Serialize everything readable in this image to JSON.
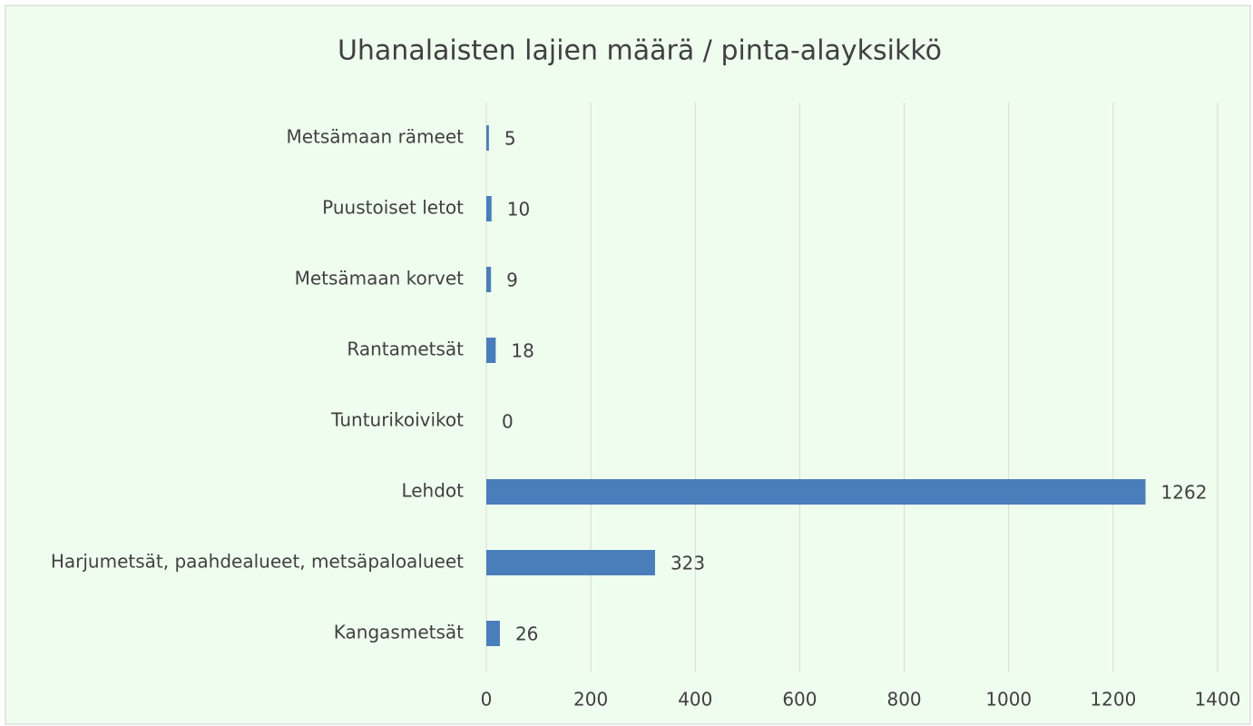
{
  "chart_data": {
    "type": "bar",
    "orientation": "horizontal",
    "title": "Uhanalaisten lajien määrä / pinta-alayksikkö",
    "categories": [
      "Metsämaan rämeet",
      "Puustoiset letot",
      "Metsämaan korvet",
      "Rantametsät",
      "Tunturikoivikot",
      "Lehdot",
      "Harjumetsät, paahdealueet, metsäpaloalueet",
      "Kangasmetsät"
    ],
    "values": [
      5,
      10,
      9,
      18,
      0,
      1262,
      323,
      26
    ],
    "color": "#4a7ebb",
    "xlim": [
      0,
      1400
    ],
    "xticks": [
      0,
      200,
      400,
      600,
      800,
      1000,
      1200,
      1400
    ],
    "grid": true
  }
}
